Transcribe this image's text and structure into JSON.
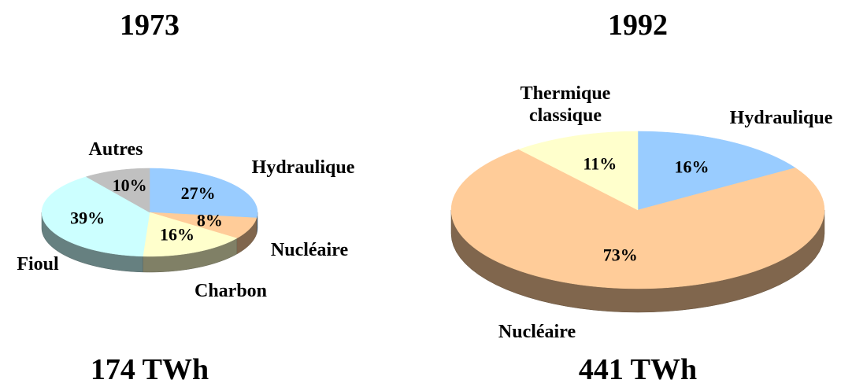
{
  "chart_data": [
    {
      "type": "pie3d",
      "title": "1973",
      "subtitle": "174 TWh",
      "categories": [
        "Hydraulique",
        "Nucléaire",
        "Charbon",
        "Fioul",
        "Autres"
      ],
      "values": [
        27,
        8,
        16,
        39,
        10
      ],
      "value_labels": [
        "27%",
        "8%",
        "16%",
        "39%",
        "10%"
      ],
      "colors": [
        "#99ccff",
        "#ffcc99",
        "#ffffcc",
        "#ccffff",
        "#c0c0c0"
      ]
    },
    {
      "type": "pie3d",
      "title": "1992",
      "subtitle": "441 TWh",
      "categories": [
        "Hydraulique",
        "Nucléaire",
        "Thermique classique"
      ],
      "values": [
        16,
        73,
        11
      ],
      "value_labels": [
        "16%",
        "73%",
        "11%"
      ],
      "colors": [
        "#99ccff",
        "#ffcc99",
        "#ffffcc"
      ]
    }
  ]
}
